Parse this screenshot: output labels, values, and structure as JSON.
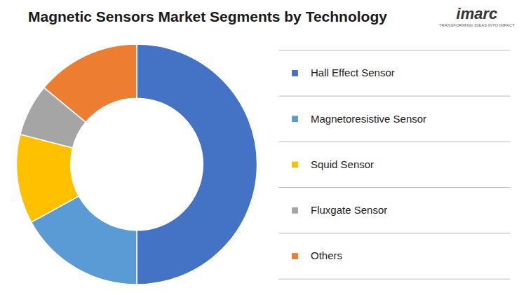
{
  "chart_data": {
    "type": "pie",
    "title": "Magnetic Sensors Market Segments by Technology",
    "categories": [
      "Hall Effect Sensor",
      "Magnetoresistive Sensor",
      "Squid Sensor",
      "Fluxgate Sensor",
      "Others"
    ],
    "values": [
      50,
      17,
      12,
      7,
      14
    ],
    "colors": [
      "#4472C4",
      "#5B9BD5",
      "#FFC000",
      "#A5A5A5",
      "#ED7D31"
    ],
    "legend": "right",
    "annotations": [
      "imarc",
      "TRANSFORMING IDEAS INTO IMPACT"
    ]
  }
}
